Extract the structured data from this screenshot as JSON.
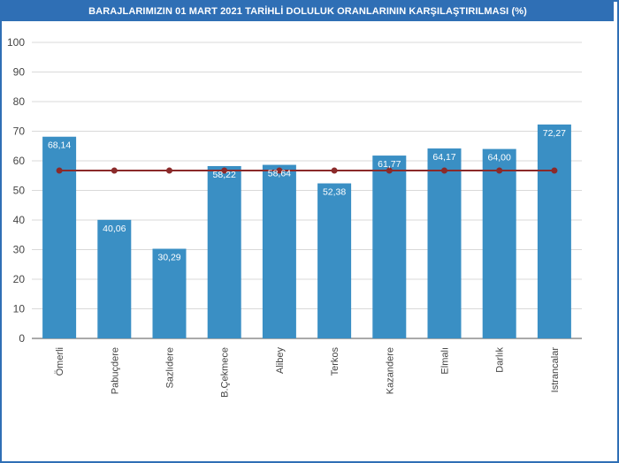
{
  "chart_data": {
    "type": "bar",
    "title": "BARAJLARIMIZIN 01 MART 2021 TARİHLİ DOLULUK ORANLARININ KARŞILAŞTIRILMASI (%)",
    "categories": [
      "Ömerli",
      "Pabuçdere",
      "Sazlıdere",
      "B.Çekmece",
      "Alibey",
      "Terkos",
      "Kazandere",
      "Elmalı",
      "Darlık",
      "Istrancalar"
    ],
    "values": [
      68.14,
      40.06,
      30.29,
      58.22,
      58.64,
      52.38,
      61.77,
      64.17,
      64.0,
      72.27
    ],
    "value_labels": [
      "68,14",
      "40,06",
      "30,29",
      "58,22",
      "58,64",
      "52,38",
      "61,77",
      "64,17",
      "64,00",
      "72,27"
    ],
    "reference_line": {
      "values": [
        56.7,
        56.7,
        56.7,
        56.7,
        56.7,
        56.7,
        56.7,
        56.7,
        56.7,
        56.7
      ]
    },
    "y_ticks": [
      "0",
      "10",
      "20",
      "30",
      "40",
      "50",
      "60",
      "70",
      "80",
      "90",
      "100"
    ],
    "ylim": [
      0,
      100
    ],
    "grid": true,
    "colors": {
      "bar": "#3a8fc4",
      "line": "#8b2a2a",
      "title_bg": "#2f6fb5"
    }
  }
}
